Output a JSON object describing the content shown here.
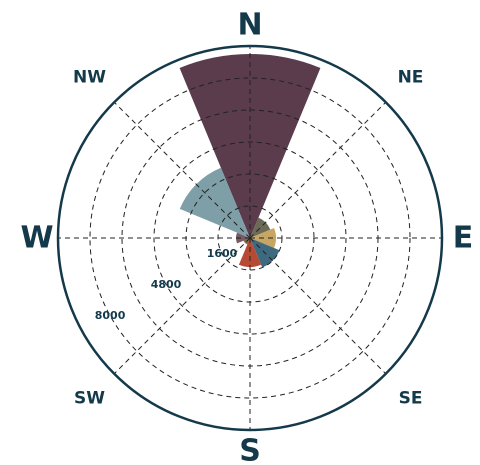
{
  "chart_data": {
    "type": "polar-bar",
    "title": "",
    "directions": [
      {
        "label": "N",
        "angle": 0,
        "major": true
      },
      {
        "label": "NE",
        "angle": 45,
        "major": false
      },
      {
        "label": "E",
        "angle": 90,
        "major": true
      },
      {
        "label": "SE",
        "angle": 135,
        "major": false
      },
      {
        "label": "S",
        "angle": 180,
        "major": true
      },
      {
        "label": "SW",
        "angle": 225,
        "major": false
      },
      {
        "label": "W",
        "angle": 270,
        "major": true
      },
      {
        "label": "NW",
        "angle": 315,
        "major": false
      }
    ],
    "radial_ticks": [
      1600,
      4800,
      8000
    ],
    "radial_max": 9600,
    "radial_grid": [
      1600,
      3200,
      4800,
      6400,
      8000,
      9600
    ],
    "sectors": [
      {
        "start": -22.5,
        "end": 22.5,
        "value": 9200,
        "color": "#5a3c4c"
      },
      {
        "start": 22.5,
        "end": 67.5,
        "value": 1100,
        "color": "#6b6a58"
      },
      {
        "start": 67.5,
        "end": 112.5,
        "value": 1300,
        "color": "#c7a562"
      },
      {
        "start": 112.5,
        "end": 157.5,
        "value": 1600,
        "color": "#3e6a80"
      },
      {
        "start": 157.5,
        "end": 202.5,
        "value": 1450,
        "color": "#b74a34"
      },
      {
        "start": 202.5,
        "end": 247.5,
        "value": 350,
        "color": "#7a6a4a"
      },
      {
        "start": 247.5,
        "end": 292.5,
        "value": 700,
        "color": "#7a5a62"
      },
      {
        "start": 292.5,
        "end": 337.5,
        "value": 3800,
        "color": "#7e9ea8"
      }
    ],
    "grid": true
  }
}
